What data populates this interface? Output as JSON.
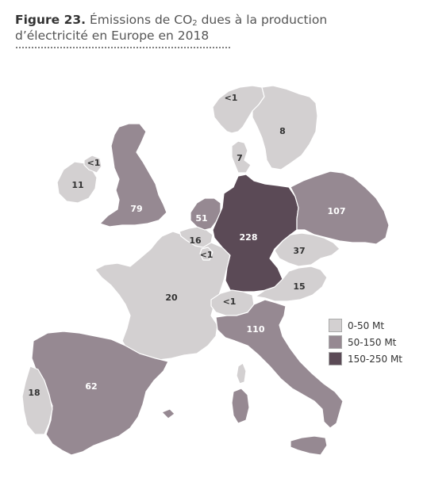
{
  "caption": {
    "figure": "Figure 23.",
    "line1_pre": "Émissions de CO",
    "line1_sub": "2",
    "line1_post": " dues à la production",
    "line2": "d’électricité en Europe en 2018"
  },
  "colors": {
    "low": "#d3d0d1",
    "mid": "#968992",
    "high": "#5b4a56",
    "border": "#ffffff",
    "label_light": "#ffffff",
    "label_dark": "#333333"
  },
  "legend": [
    {
      "label": "0-50 Mt",
      "class": "low"
    },
    {
      "label": "50-150 Mt",
      "class": "mid"
    },
    {
      "label": "150-250 Mt",
      "class": "high"
    }
  ],
  "countries": {
    "norway": "<1",
    "sweden": "8",
    "denmark": "7",
    "northern_ireland": "<1",
    "ireland": "11",
    "great_britain": "79",
    "netherlands": "51",
    "belgium": "16",
    "luxembourg": "<1",
    "germany": "228",
    "poland": "107",
    "czechia": "37",
    "austria": "15",
    "switzerland": "<1",
    "france": "20",
    "italy": "110",
    "spain": "62",
    "portugal": "18"
  }
}
